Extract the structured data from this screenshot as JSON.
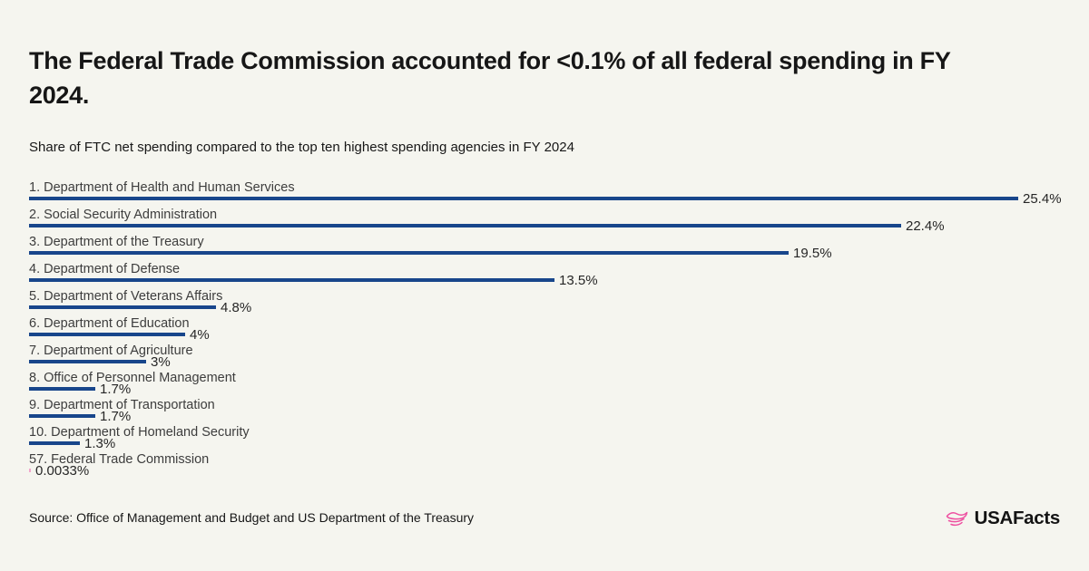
{
  "title": "The Federal Trade Commission accounted for <0.1% of all federal spending in FY\n2024.",
  "subtitle": "Share of FTC net spending compared to the top ten highest spending agencies in FY 2024",
  "source": "Source: Office of Management and Budget and US Department of the Treasury",
  "logo": {
    "text": "USAFacts",
    "icon": "usafacts-flag-icon",
    "icon_color": "#EE4FA0"
  },
  "colors": {
    "background": "#F5F5EF",
    "bar": "#18468B",
    "highlight_bar": "#F2A5CB",
    "title_text": "#161616",
    "label_text": "#3D3D3D",
    "value_text": "#262626"
  },
  "chart_data": {
    "type": "bar",
    "orientation": "horizontal",
    "title": "The Federal Trade Commission accounted for <0.1% of all federal spending in FY 2024.",
    "subtitle": "Share of FTC net spending compared to the top ten highest spending agencies in FY 2024",
    "unit": "%",
    "grid": false,
    "axes_shown": false,
    "value_labels_shown": true,
    "xlim": [
      0,
      25.4
    ],
    "categories": [
      "1. Department of Health and Human Services",
      "2. Social Security Administration",
      "3. Department of the Treasury",
      "4. Department of Defense",
      "5. Department of Veterans Affairs",
      "6. Department of Education",
      "7. Department of Agriculture",
      "8. Office of Personnel Management",
      "9. Department of Transportation",
      "10. Department of Homeland Security",
      "57. Federal Trade Commission"
    ],
    "values": [
      25.4,
      22.4,
      19.5,
      13.5,
      4.8,
      4,
      3,
      1.7,
      1.7,
      1.3,
      0.0033
    ],
    "value_labels": [
      "25.4%",
      "22.4%",
      "19.5%",
      "13.5%",
      "4.8%",
      "4%",
      "3%",
      "1.7%",
      "1.7%",
      "1.3%",
      "0.0033%"
    ],
    "highlight_index": 10
  }
}
